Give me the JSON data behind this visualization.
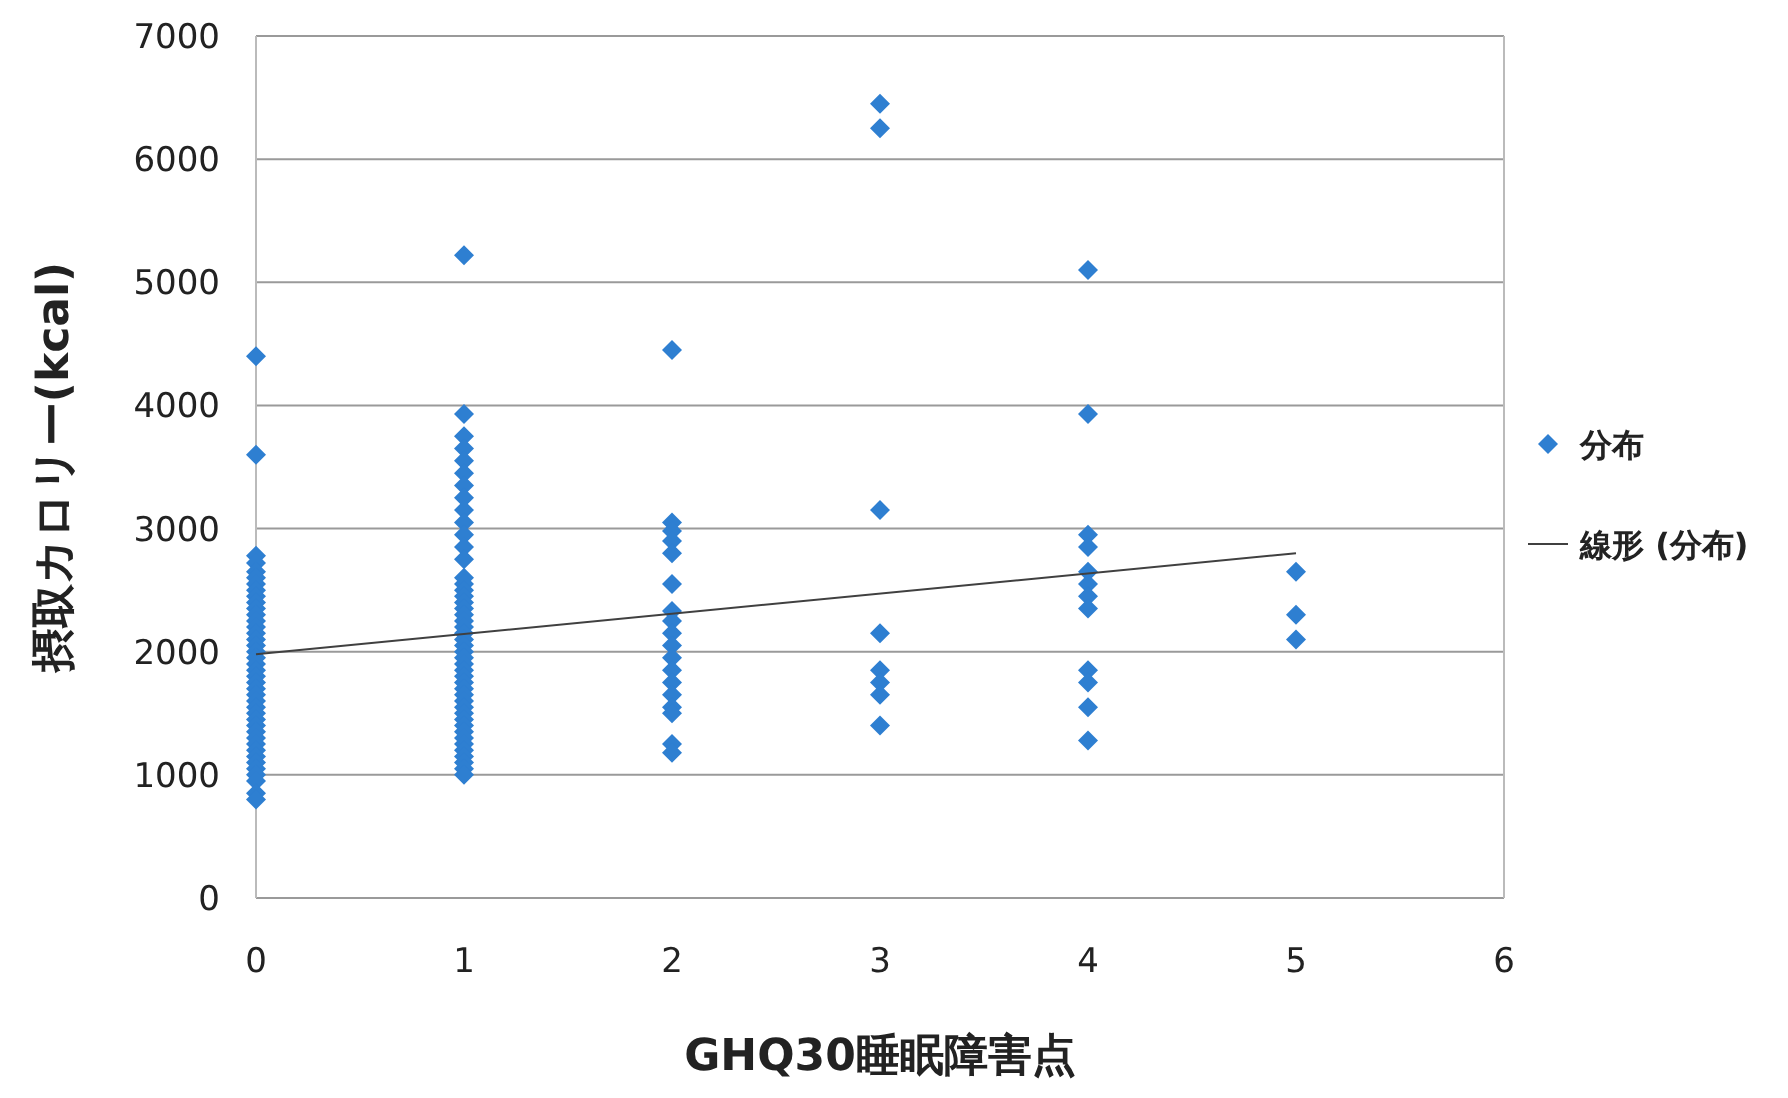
{
  "chart_data": {
    "type": "scatter",
    "xlabel": "GHQ30睡眠障害点",
    "ylabel": "摂取カロリー(kcal)",
    "xlim": [
      0,
      6
    ],
    "xticks": [
      0,
      1,
      2,
      3,
      4,
      5,
      6
    ],
    "ylim": [
      0,
      7000
    ],
    "yticks": [
      0,
      1000,
      2000,
      3000,
      4000,
      5000,
      6000,
      7000
    ],
    "grid": "y",
    "legend": "right",
    "series": [
      {
        "name": "分布",
        "marker": "diamond",
        "color": "#2e7fd1",
        "x": [
          0,
          0,
          0,
          0,
          0,
          0,
          0,
          0,
          0,
          0,
          0,
          0,
          0,
          0,
          0,
          0,
          0,
          0,
          0,
          0,
          0,
          0,
          0,
          0,
          0,
          0,
          0,
          0,
          0,
          0,
          0,
          0,
          0,
          0,
          0,
          0,
          0,
          0,
          0,
          0,
          0,
          1,
          1,
          1,
          1,
          1,
          1,
          1,
          1,
          1,
          1,
          1,
          1,
          1,
          1,
          1,
          1,
          1,
          1,
          1,
          1,
          1,
          1,
          1,
          1,
          1,
          1,
          1,
          1,
          1,
          1,
          1,
          1,
          1,
          1,
          1,
          1,
          1,
          1,
          1,
          1,
          1,
          1,
          1,
          1,
          1,
          1,
          2,
          2,
          2,
          2,
          2,
          2,
          2,
          2,
          2,
          2,
          2,
          2,
          2,
          2,
          2,
          2,
          2,
          2,
          3,
          3,
          3,
          3,
          3,
          3,
          3,
          3,
          4,
          4,
          4,
          4,
          4,
          4,
          4,
          4,
          4,
          4,
          4,
          4,
          5,
          5,
          5
        ],
        "values": [
          4400,
          3600,
          2780,
          2720,
          2650,
          2600,
          2550,
          2500,
          2450,
          2400,
          2350,
          2300,
          2250,
          2200,
          2150,
          2100,
          2050,
          2000,
          1950,
          1900,
          1850,
          1800,
          1750,
          1700,
          1650,
          1600,
          1550,
          1500,
          1450,
          1400,
          1350,
          1300,
          1250,
          1200,
          1150,
          1100,
          1050,
          1000,
          950,
          850,
          800,
          5220,
          3930,
          3750,
          3650,
          3550,
          3450,
          3350,
          3250,
          3150,
          3050,
          2950,
          2850,
          2750,
          2600,
          2550,
          2500,
          2450,
          2400,
          2350,
          2300,
          2250,
          2200,
          2150,
          2100,
          2050,
          2000,
          1950,
          1900,
          1850,
          1800,
          1750,
          1700,
          1650,
          1600,
          1550,
          1500,
          1450,
          1400,
          1350,
          1300,
          1250,
          1200,
          1150,
          1100,
          1050,
          1000,
          4450,
          3050,
          2980,
          2900,
          2800,
          2550,
          2330,
          2250,
          2150,
          2050,
          1950,
          1850,
          1750,
          1650,
          1550,
          1500,
          1250,
          1180,
          6450,
          6250,
          3150,
          2150,
          1850,
          1750,
          1650,
          1400,
          5100,
          3930,
          2950,
          2850,
          2650,
          2550,
          2450,
          2350,
          1850,
          1750,
          1550,
          1280,
          2650,
          2300,
          2100
        ]
      },
      {
        "name": "線形 (分布)",
        "type": "line",
        "marker": "none",
        "color": "#404040",
        "x": [
          0,
          5
        ],
        "values": [
          1980,
          2800
        ]
      }
    ]
  }
}
